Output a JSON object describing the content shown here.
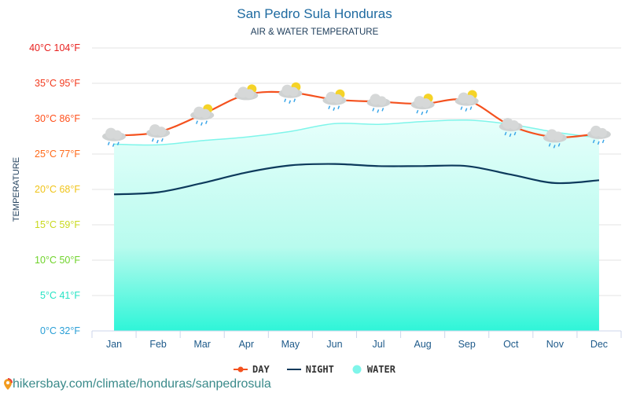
{
  "chart_data": {
    "type": "line",
    "title": "San Pedro Sula Honduras",
    "subtitle": "AIR & WATER TEMPERATURE",
    "ylabel": "TEMPERATURE",
    "xlabel": "",
    "categories": [
      "Jan",
      "Feb",
      "Mar",
      "Apr",
      "May",
      "Jun",
      "Jul",
      "Aug",
      "Sep",
      "Oct",
      "Nov",
      "Dec"
    ],
    "ylim": [
      0,
      40
    ],
    "y_ticks": [
      {
        "value": 0,
        "label": "0°C 32°F",
        "color": "#2a9fd6"
      },
      {
        "value": 5,
        "label": "5°C 41°F",
        "color": "#27e3c4"
      },
      {
        "value": 10,
        "label": "10°C 50°F",
        "color": "#6fd32a"
      },
      {
        "value": 15,
        "label": "15°C 59°F",
        "color": "#c9d91e"
      },
      {
        "value": 20,
        "label": "20°C 68°F",
        "color": "#f0c419"
      },
      {
        "value": 25,
        "label": "25°C 77°F",
        "color": "#ff6a1a"
      },
      {
        "value": 30,
        "label": "30°C 86°F",
        "color": "#ff4f1a"
      },
      {
        "value": 35,
        "label": "35°C 95°F",
        "color": "#f23a1e"
      },
      {
        "value": 40,
        "label": "40°C 104°F",
        "color": "#e8201e"
      }
    ],
    "grid": true,
    "legend_position": "bottom",
    "series": [
      {
        "name": "DAY",
        "color": "#f4511e",
        "values": [
          27.6,
          28.1,
          30.6,
          33.4,
          33.7,
          32.7,
          32.4,
          32.1,
          32.6,
          29.0,
          27.4,
          27.9
        ]
      },
      {
        "name": "NIGHT",
        "color": "#0d3a5c",
        "values": [
          19.3,
          19.6,
          20.9,
          22.4,
          23.4,
          23.6,
          23.3,
          23.3,
          23.3,
          22.1,
          20.9,
          21.3
        ]
      },
      {
        "name": "WATER",
        "color": "#7ff5ea",
        "values": [
          26.4,
          26.3,
          26.9,
          27.4,
          28.2,
          29.3,
          29.2,
          29.6,
          29.8,
          29.2,
          28.1,
          27.3
        ]
      }
    ],
    "weather_icons": [
      "rain-cloud",
      "rain-cloud",
      "sun-rain-cloud",
      "sun-cloud",
      "sun-rain-cloud",
      "sun-rain-cloud",
      "rain-cloud",
      "sun-rain-cloud",
      "sun-rain-cloud",
      "rain-cloud",
      "rain-cloud",
      "rain-cloud"
    ]
  },
  "footer": {
    "url": "hikersbay.com/climate/honduras/sanpedrosula"
  }
}
